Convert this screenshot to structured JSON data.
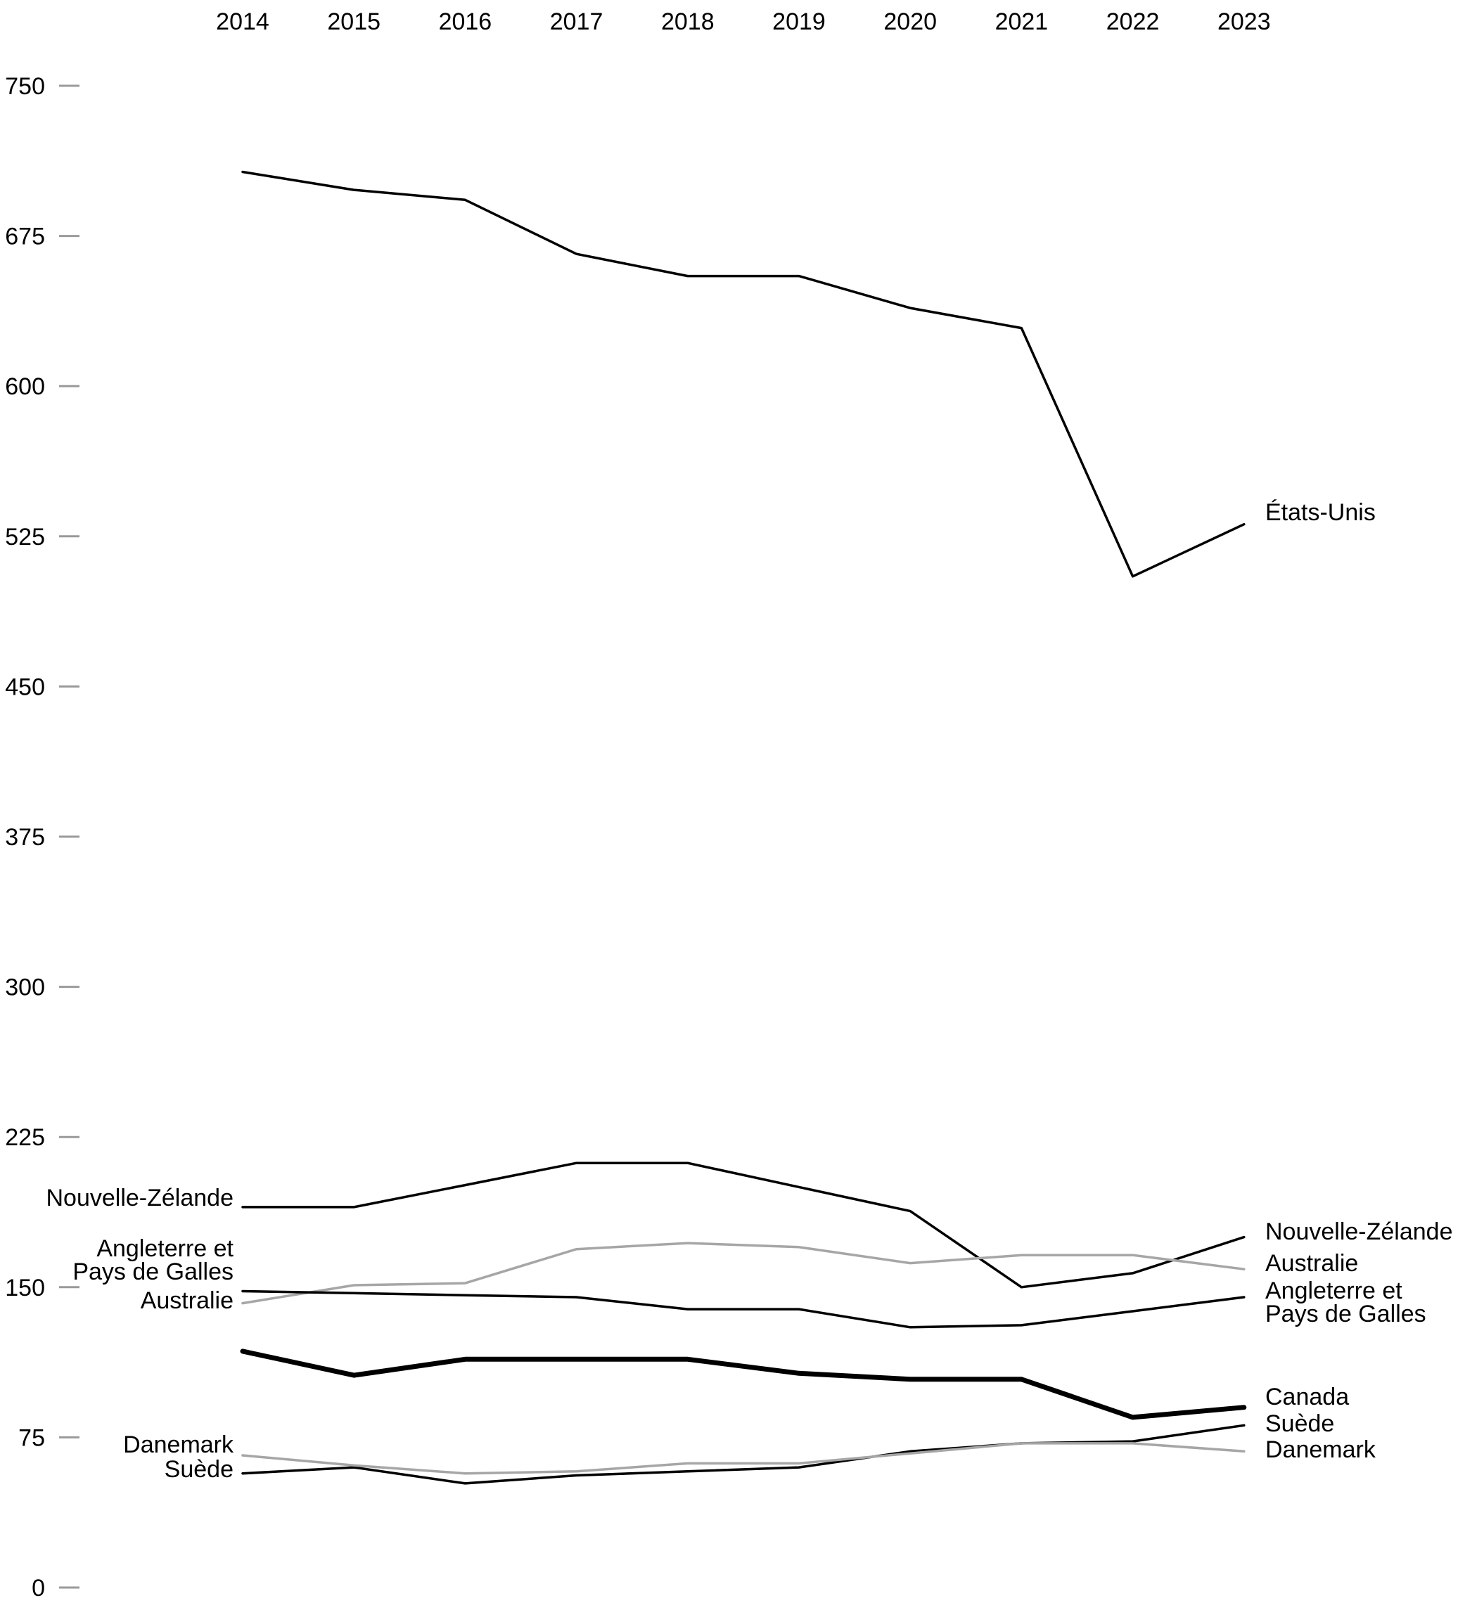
{
  "chart_data": {
    "type": "line",
    "title": "",
    "xlabel": "",
    "ylabel": "",
    "x": [
      "2014",
      "2015",
      "2016",
      "2017",
      "2018",
      "2019",
      "2020",
      "2021",
      "2022",
      "2023"
    ],
    "yticks": [
      "750",
      "675",
      "600",
      "525",
      "450",
      "375",
      "300",
      "225",
      "150",
      "75",
      "0"
    ],
    "ylim": [
      0,
      750
    ],
    "grid": false,
    "legend": "direct labels at line ends",
    "series": [
      {
        "name": "États-Unis",
        "values": [
          707,
          698,
          693,
          666,
          655,
          655,
          639,
          629,
          505,
          531
        ],
        "color": "#000000",
        "width": "normal",
        "right_label": [
          "États-Unis"
        ],
        "left_label": []
      },
      {
        "name": "Nouvelle-Zélande",
        "values": [
          190,
          190,
          201,
          212,
          212,
          200,
          188,
          150,
          157,
          175
        ],
        "color": "#000000",
        "width": "normal",
        "right_label": [
          "Nouvelle-Zélande"
        ],
        "left_label": [
          "Nouvelle-Zélande"
        ]
      },
      {
        "name": "Australie",
        "values": [
          142,
          151,
          152,
          169,
          172,
          170,
          162,
          166,
          166,
          159
        ],
        "color": "#a6a6a6",
        "width": "normal",
        "right_label": [
          "Australie"
        ],
        "left_label": [
          "Australie"
        ]
      },
      {
        "name": "Angleterre et Pays de Galles",
        "values": [
          148,
          147,
          146,
          145,
          139,
          139,
          130,
          131,
          138,
          145
        ],
        "color": "#000000",
        "width": "normal",
        "right_label": [
          "Angleterre et",
          "Pays de Galles"
        ],
        "left_label": [
          "Angleterre et",
          "Pays de Galles"
        ]
      },
      {
        "name": "Canada",
        "values": [
          118,
          106,
          114,
          114,
          114,
          107,
          104,
          104,
          85,
          90
        ],
        "color": "#000000",
        "width": "bold",
        "right_label": [
          "Canada"
        ],
        "left_label": []
      },
      {
        "name": "Suède",
        "values": [
          57,
          60,
          52,
          56,
          58,
          60,
          68,
          72,
          73,
          81
        ],
        "color": "#000000",
        "width": "normal",
        "right_label": [
          "Suède"
        ],
        "left_label": [
          "Suède"
        ]
      },
      {
        "name": "Danemark",
        "values": [
          66,
          61,
          57,
          58,
          62,
          62,
          67,
          72,
          72,
          68
        ],
        "color": "#a6a6a6",
        "width": "normal",
        "right_label": [
          "Danemark"
        ],
        "left_label": [
          "Danemark"
        ]
      }
    ]
  }
}
